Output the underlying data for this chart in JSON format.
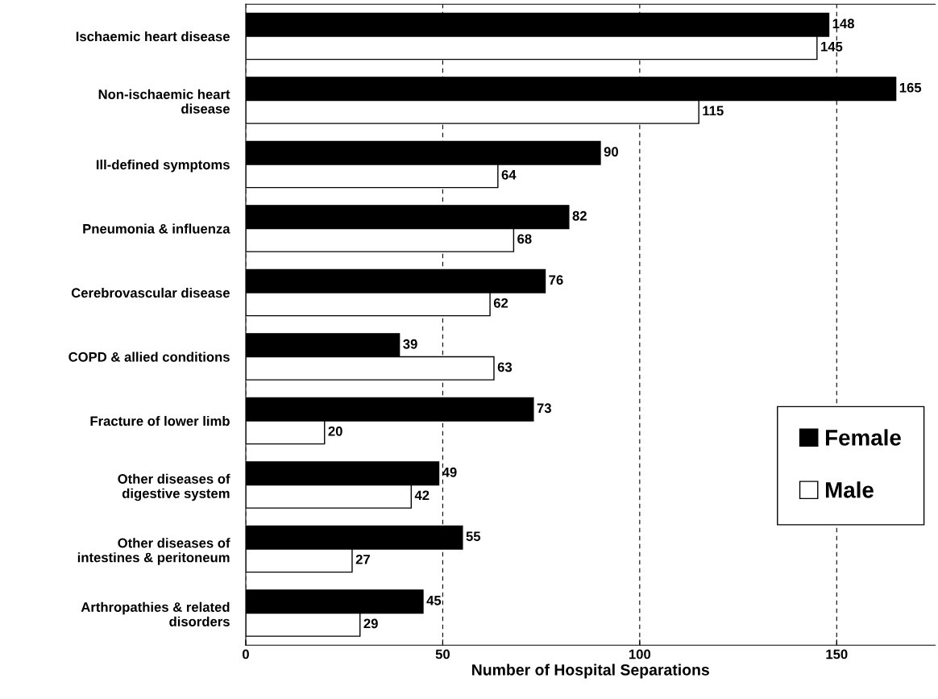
{
  "chart_data": {
    "type": "bar",
    "orientation": "horizontal",
    "categories": [
      "Ischaemic heart disease",
      "Non-ischaemic heart\ndisease",
      "Ill-defined symptoms",
      "Pneumonia & influenza",
      "Cerebrovascular disease",
      "COPD & allied conditions",
      "Fracture of lower limb",
      "Other diseases of\ndigestive system",
      "Other diseases of\nintestines & peritoneum",
      "Arthropathies & related\ndisorders"
    ],
    "series": [
      {
        "name": "Female",
        "color": "#000000",
        "values": [
          148,
          165,
          90,
          82,
          76,
          39,
          73,
          49,
          55,
          45
        ]
      },
      {
        "name": "Male",
        "color": "#ffffff",
        "values": [
          145,
          115,
          64,
          68,
          62,
          63,
          20,
          42,
          27,
          29
        ]
      }
    ],
    "xlabel": "Number of Hospital Separations",
    "xlim": [
      0,
      175
    ],
    "xticks": [
      0,
      50,
      100,
      150
    ],
    "grid": "x",
    "legend": "right",
    "data_labels": true
  }
}
